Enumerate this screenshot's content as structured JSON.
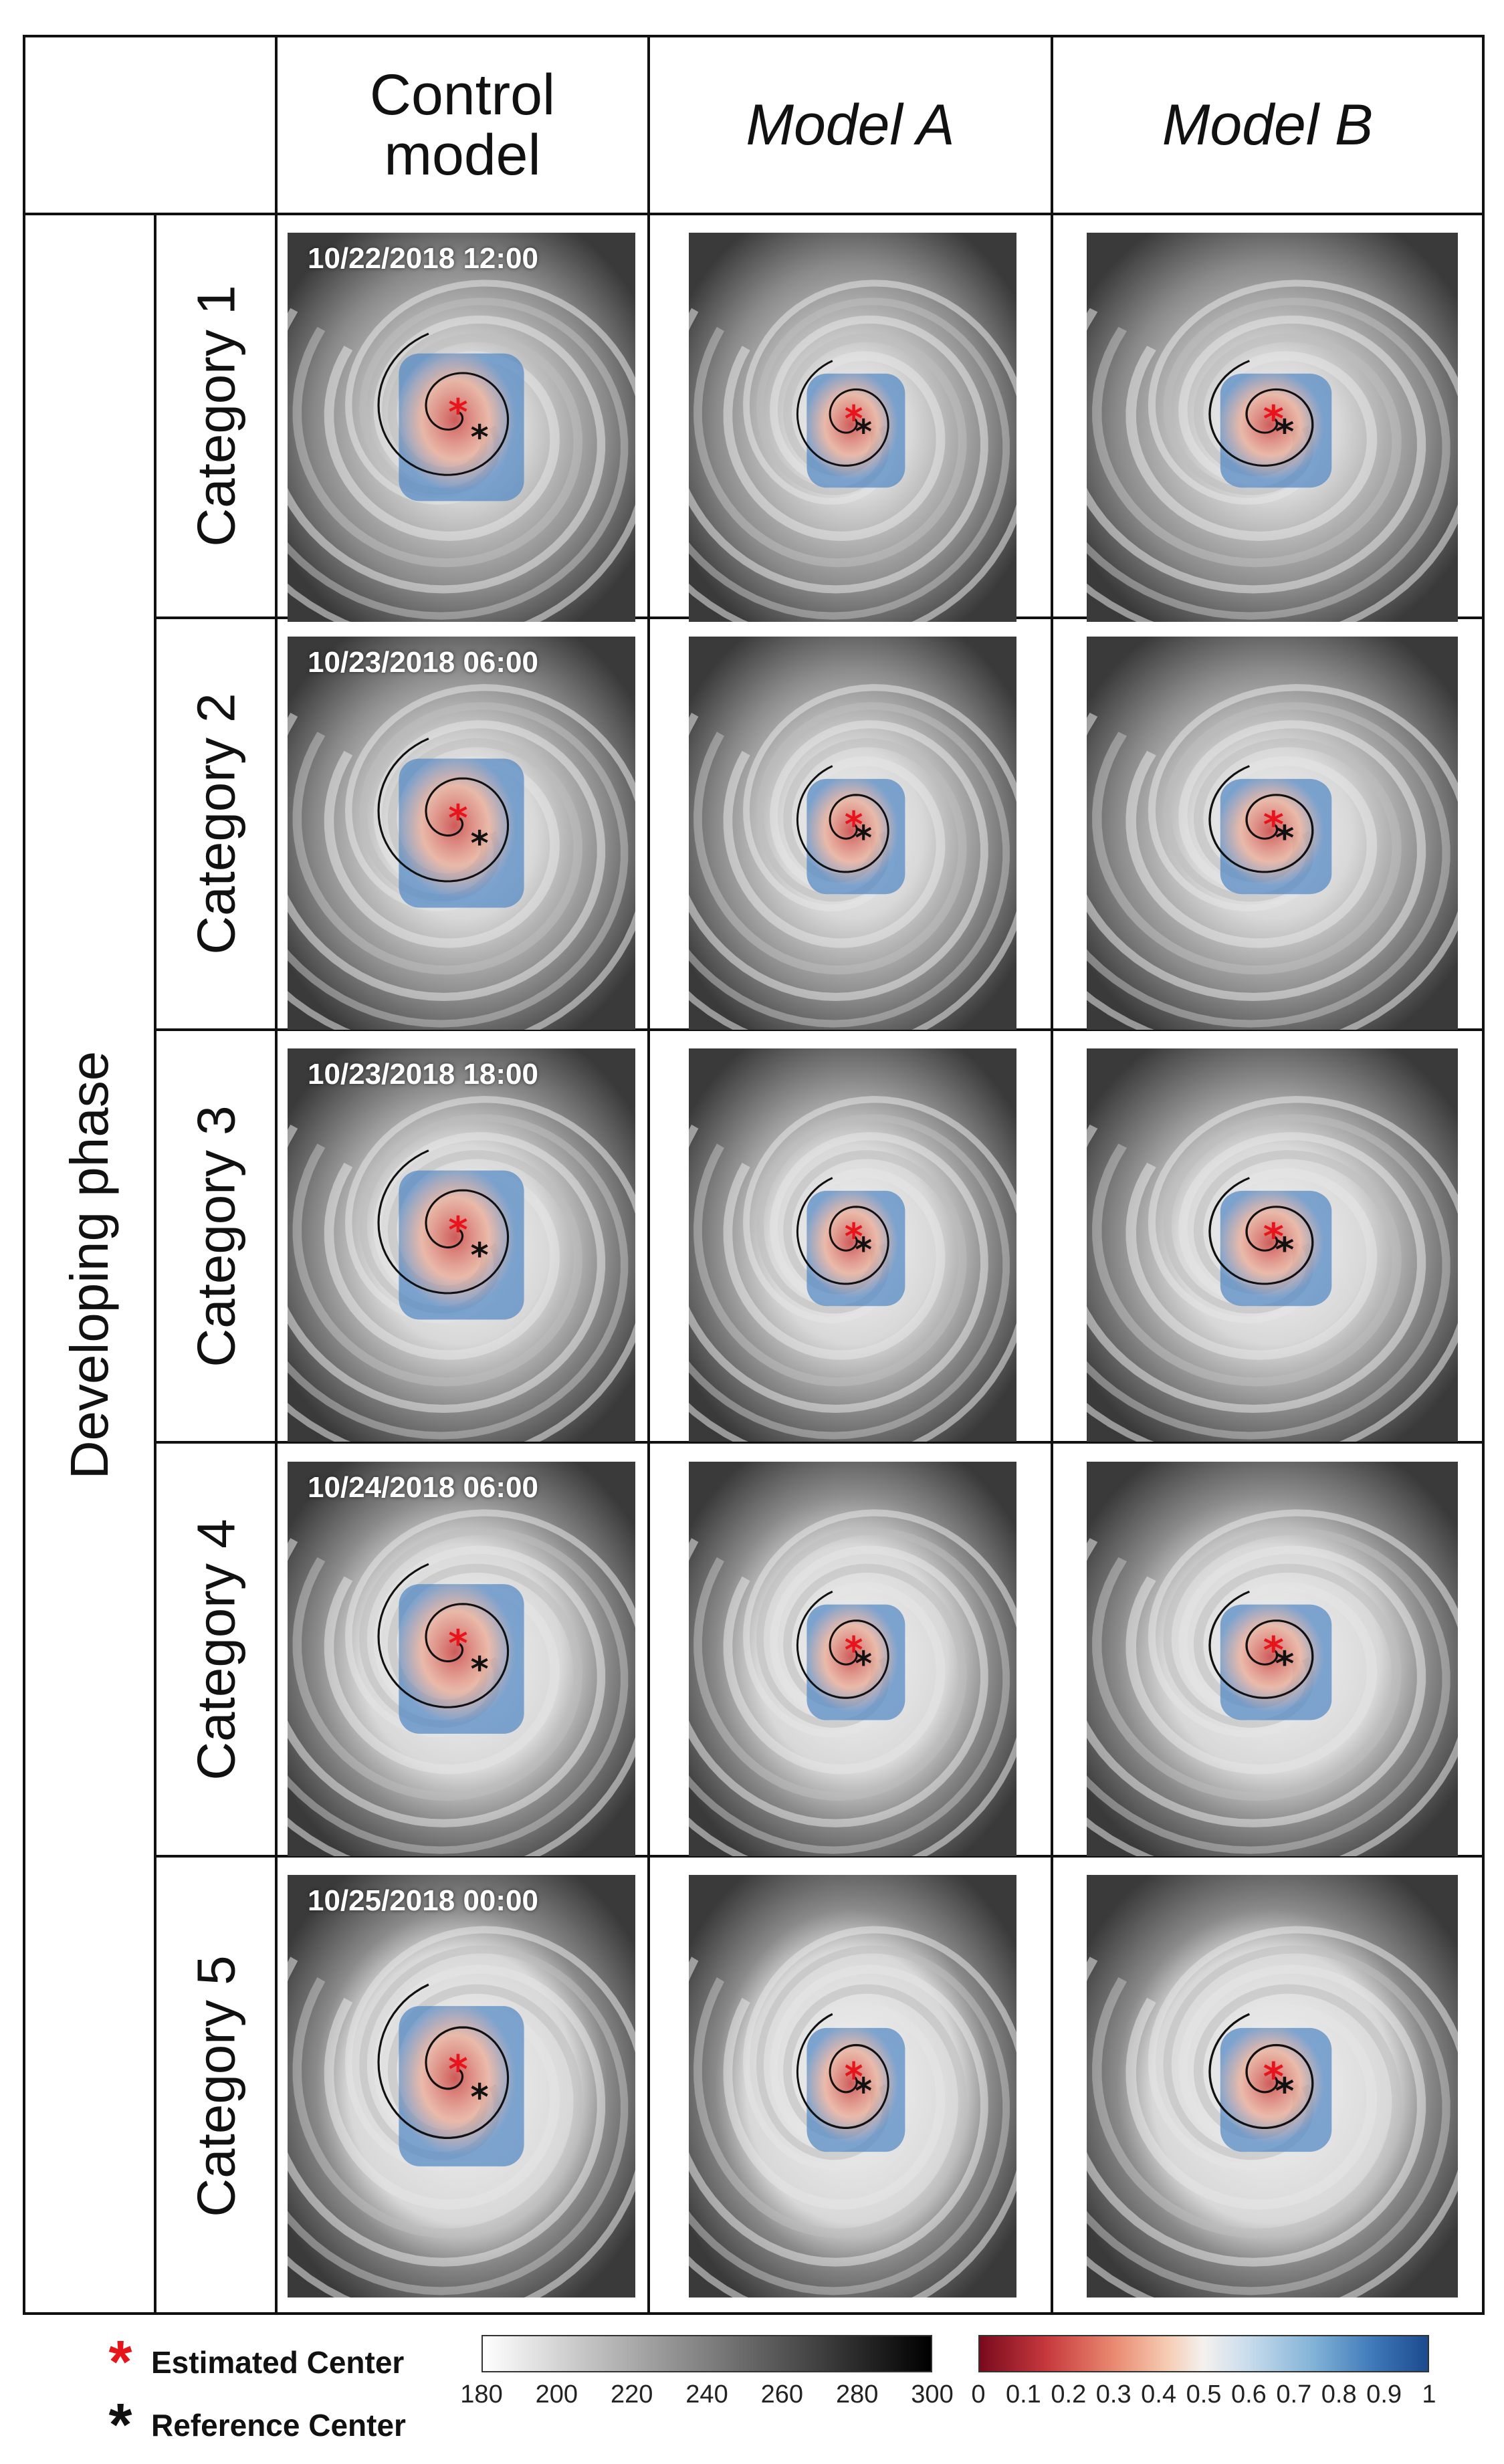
{
  "header": {
    "control": "Control\nmodel",
    "model_a": "Model A",
    "model_b": "Model B"
  },
  "phase_label": "Developing phase",
  "rows": [
    {
      "category": "Category 1",
      "timestamp": "10/22/2018 12:00"
    },
    {
      "category": "Category 2",
      "timestamp": "10/23/2018 06:00"
    },
    {
      "category": "Category 3",
      "timestamp": "10/23/2018 18:00"
    },
    {
      "category": "Category 4",
      "timestamp": "10/24/2018 06:00"
    },
    {
      "category": "Category 5",
      "timestamp": "10/25/2018 00:00"
    }
  ],
  "legend": {
    "estimated": {
      "symbol": "*",
      "label": "Estimated Center",
      "color": "#e8141c"
    },
    "reference": {
      "symbol": "*",
      "label": "Reference Center",
      "color": "#111111"
    }
  },
  "colorbar_gray": {
    "ticks": [
      "180",
      "200",
      "220",
      "240",
      "260",
      "280",
      "300"
    ]
  },
  "colorbar_rdbu": {
    "ticks": [
      "0",
      "0.1",
      "0.2",
      "0.3",
      "0.4",
      "0.5",
      "0.6",
      "0.7",
      "0.8",
      "0.9",
      "1"
    ]
  },
  "colors": {
    "estimated_star": "#e8141c",
    "reference_star": "#111111",
    "heat_red": "#c8403f",
    "heat_blue": "#4f86c4"
  }
}
